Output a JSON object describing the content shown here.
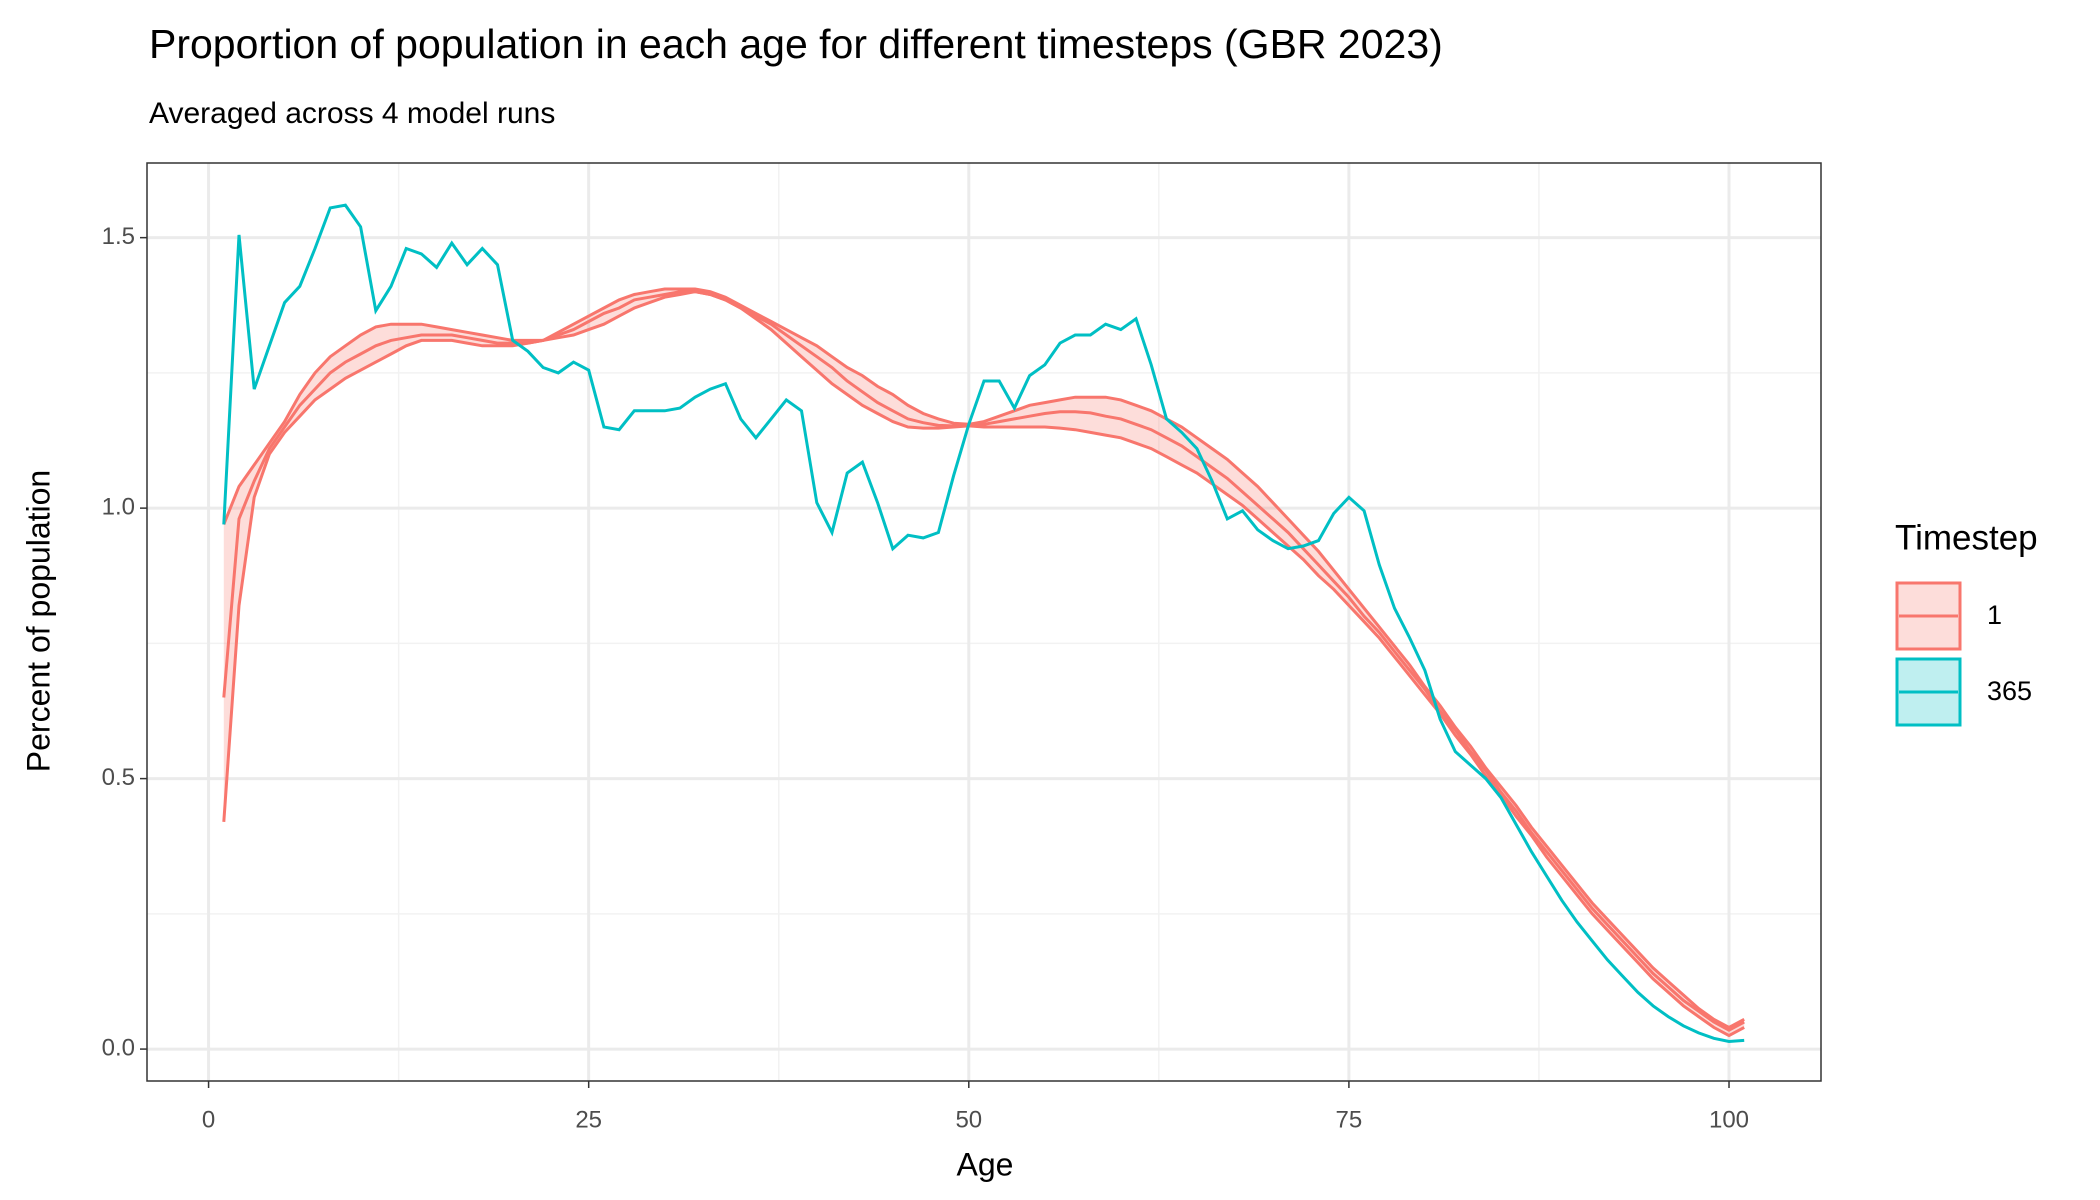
{
  "chart_data": {
    "type": "line",
    "title": "Proportion of population in each age for different timesteps (GBR 2023)",
    "subtitle": "Averaged across 4 model runs",
    "x_label": "Age",
    "y_label": "Percent of population",
    "legend_title": "Timestep",
    "legend_position": "right",
    "grid": true,
    "xlim": [
      -4.05,
      106.05
    ],
    "ylim": [
      -0.059,
      1.638
    ],
    "xticks": [
      0,
      25,
      50,
      75,
      100
    ],
    "yticks": [
      {
        "value": 0,
        "label": "0.0"
      },
      0.5,
      {
        "value": 1,
        "label": "1.0"
      },
      1.5
    ],
    "xminor": [
      12.5,
      37.5,
      62.5,
      87.5
    ],
    "yminor": [
      0.25,
      0.75,
      1.25
    ],
    "x": [
      1,
      2,
      3,
      4,
      5,
      6,
      7,
      8,
      9,
      10,
      11,
      12,
      13,
      14,
      15,
      16,
      17,
      18,
      19,
      20,
      21,
      22,
      23,
      24,
      25,
      26,
      27,
      28,
      29,
      30,
      31,
      32,
      33,
      34,
      35,
      36,
      37,
      38,
      39,
      40,
      41,
      42,
      43,
      44,
      45,
      46,
      47,
      48,
      49,
      50,
      51,
      52,
      53,
      54,
      55,
      56,
      57,
      58,
      59,
      60,
      61,
      62,
      63,
      64,
      65,
      66,
      67,
      68,
      69,
      70,
      71,
      72,
      73,
      74,
      75,
      76,
      77,
      78,
      79,
      80,
      81,
      82,
      83,
      84,
      85,
      86,
      87,
      88,
      89,
      90,
      91,
      92,
      93,
      94,
      95,
      96,
      97,
      98,
      99,
      100,
      101
    ],
    "series": [
      {
        "name": "1",
        "color": "#F8766D",
        "values": [
          0.65,
          0.98,
          1.05,
          1.11,
          1.15,
          1.19,
          1.22,
          1.25,
          1.27,
          1.285,
          1.3,
          1.31,
          1.315,
          1.32,
          1.32,
          1.32,
          1.315,
          1.31,
          1.305,
          1.305,
          1.305,
          1.31,
          1.32,
          1.33,
          1.345,
          1.36,
          1.37,
          1.385,
          1.39,
          1.395,
          1.4,
          1.4,
          1.395,
          1.385,
          1.37,
          1.355,
          1.34,
          1.32,
          1.3,
          1.28,
          1.26,
          1.235,
          1.215,
          1.195,
          1.18,
          1.165,
          1.158,
          1.153,
          1.152,
          1.153,
          1.155,
          1.16,
          1.165,
          1.17,
          1.175,
          1.178,
          1.178,
          1.176,
          1.17,
          1.165,
          1.155,
          1.145,
          1.13,
          1.115,
          1.095,
          1.075,
          1.055,
          1.03,
          1.005,
          0.98,
          0.955,
          0.925,
          0.895,
          0.865,
          0.835,
          0.8,
          0.77,
          0.735,
          0.7,
          0.665,
          0.625,
          0.59,
          0.55,
          0.515,
          0.475,
          0.44,
          0.4,
          0.365,
          0.33,
          0.295,
          0.26,
          0.23,
          0.2,
          0.17,
          0.14,
          0.115,
          0.09,
          0.07,
          0.05,
          0.035,
          0.05
        ],
        "lower": [
          0.42,
          0.82,
          1.02,
          1.1,
          1.14,
          1.17,
          1.2,
          1.22,
          1.24,
          1.255,
          1.27,
          1.285,
          1.3,
          1.31,
          1.31,
          1.31,
          1.305,
          1.3,
          1.3,
          1.3,
          1.305,
          1.31,
          1.315,
          1.32,
          1.33,
          1.34,
          1.355,
          1.37,
          1.38,
          1.39,
          1.395,
          1.4,
          1.395,
          1.385,
          1.37,
          1.35,
          1.33,
          1.305,
          1.28,
          1.255,
          1.23,
          1.21,
          1.19,
          1.175,
          1.16,
          1.15,
          1.148,
          1.148,
          1.15,
          1.152,
          1.15,
          1.15,
          1.15,
          1.15,
          1.15,
          1.148,
          1.145,
          1.14,
          1.135,
          1.13,
          1.12,
          1.11,
          1.095,
          1.08,
          1.065,
          1.045,
          1.025,
          1.005,
          0.98,
          0.955,
          0.93,
          0.905,
          0.875,
          0.85,
          0.82,
          0.79,
          0.76,
          0.725,
          0.69,
          0.655,
          0.62,
          0.58,
          0.545,
          0.505,
          0.47,
          0.43,
          0.395,
          0.355,
          0.32,
          0.285,
          0.25,
          0.22,
          0.19,
          0.16,
          0.13,
          0.105,
          0.08,
          0.06,
          0.04,
          0.025,
          0.04
        ],
        "upper": [
          0.97,
          1.04,
          1.08,
          1.12,
          1.16,
          1.21,
          1.25,
          1.28,
          1.3,
          1.32,
          1.335,
          1.34,
          1.34,
          1.34,
          1.335,
          1.33,
          1.325,
          1.32,
          1.315,
          1.31,
          1.31,
          1.31,
          1.325,
          1.34,
          1.355,
          1.37,
          1.385,
          1.395,
          1.4,
          1.405,
          1.405,
          1.405,
          1.4,
          1.39,
          1.375,
          1.36,
          1.345,
          1.33,
          1.315,
          1.3,
          1.28,
          1.26,
          1.245,
          1.225,
          1.21,
          1.19,
          1.175,
          1.165,
          1.157,
          1.155,
          1.16,
          1.17,
          1.18,
          1.19,
          1.195,
          1.2,
          1.205,
          1.205,
          1.205,
          1.2,
          1.19,
          1.18,
          1.165,
          1.15,
          1.13,
          1.11,
          1.09,
          1.065,
          1.04,
          1.01,
          0.98,
          0.95,
          0.92,
          0.885,
          0.85,
          0.815,
          0.78,
          0.745,
          0.71,
          0.67,
          0.635,
          0.595,
          0.56,
          0.52,
          0.485,
          0.45,
          0.41,
          0.375,
          0.34,
          0.305,
          0.27,
          0.24,
          0.21,
          0.18,
          0.15,
          0.125,
          0.1,
          0.075,
          0.055,
          0.04,
          0.055
        ]
      },
      {
        "name": "365",
        "color": "#00BFC4",
        "values": [
          0.97,
          1.505,
          1.22,
          1.3,
          1.38,
          1.41,
          1.48,
          1.555,
          1.56,
          1.52,
          1.365,
          1.41,
          1.48,
          1.47,
          1.445,
          1.49,
          1.45,
          1.48,
          1.45,
          1.31,
          1.29,
          1.26,
          1.25,
          1.27,
          1.255,
          1.15,
          1.145,
          1.18,
          1.18,
          1.18,
          1.185,
          1.205,
          1.22,
          1.23,
          1.165,
          1.13,
          1.165,
          1.2,
          1.18,
          1.01,
          0.955,
          1.065,
          1.085,
          1.01,
          0.925,
          0.95,
          0.945,
          0.955,
          1.06,
          1.155,
          1.235,
          1.235,
          1.185,
          1.245,
          1.265,
          1.305,
          1.32,
          1.32,
          1.34,
          1.33,
          1.35,
          1.265,
          1.165,
          1.14,
          1.11,
          1.05,
          0.98,
          0.995,
          0.96,
          0.94,
          0.925,
          0.93,
          0.94,
          0.99,
          1.02,
          0.995,
          0.895,
          0.815,
          0.76,
          0.7,
          0.61,
          0.55,
          0.525,
          0.5,
          0.465,
          0.415,
          0.365,
          0.32,
          0.275,
          0.235,
          0.2,
          0.165,
          0.135,
          0.105,
          0.08,
          0.06,
          0.043,
          0.03,
          0.02,
          0.014,
          0.016
        ]
      }
    ]
  }
}
